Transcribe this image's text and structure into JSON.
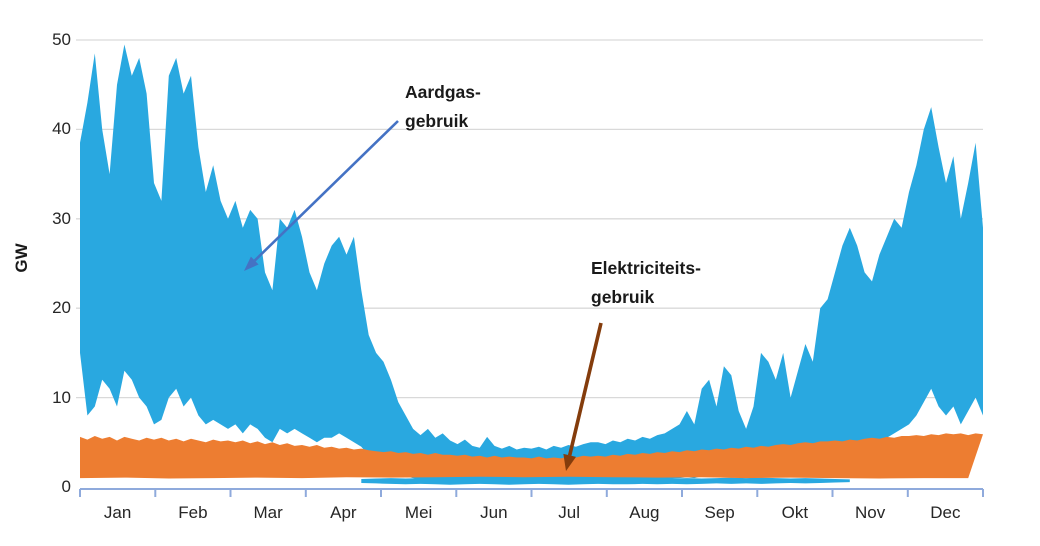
{
  "chart_data": {
    "type": "area",
    "title": "",
    "ylabel": "GW",
    "ylim": [
      0,
      50
    ],
    "yticks": [
      0,
      10,
      20,
      30,
      40,
      50
    ],
    "x_categories": [
      "Jan",
      "Feb",
      "Mar",
      "Apr",
      "Mei",
      "Jun",
      "Jul",
      "Aug",
      "Sep",
      "Okt",
      "Nov",
      "Dec"
    ],
    "grid": "horizontal",
    "legend": "none",
    "annotations": {
      "gas": {
        "line1": "Aardgas-",
        "line2": "gebruik"
      },
      "elec": {
        "line1": "Elektriciteits-",
        "line2": "gebruik"
      }
    },
    "colors": {
      "gas_fill": "#29A8E0",
      "elec_fill": "#ED7D31",
      "gridline": "#D9D9D9",
      "axis_line": "#8FAADC",
      "gas_arrow": "#4472C4",
      "elec_arrow": "#843C0C",
      "text": "#1a1a1a"
    },
    "series": [
      {
        "name": "Aardgasgebruik",
        "role": "gas-band",
        "unit": "GW",
        "start_day": 0,
        "step_days": 3,
        "max_values": [
          38.5,
          43,
          48.5,
          40,
          35,
          45,
          49.5,
          46,
          48,
          44,
          34,
          32,
          46,
          48,
          44,
          46,
          38,
          33,
          36,
          32,
          30,
          32,
          29,
          31,
          30,
          24,
          22,
          30,
          29,
          31,
          28,
          24,
          22,
          25,
          27,
          28,
          26,
          28,
          22,
          17,
          15,
          14,
          12,
          9.5,
          8,
          6.5,
          5.8,
          6.5,
          5.5,
          6,
          5.2,
          4.8,
          5.3,
          4.6,
          4.4,
          5.6,
          4.6,
          4.3,
          4.6,
          4.2,
          4.4,
          4.3,
          4.5,
          4.2,
          4.6,
          4.4,
          4.7,
          4.5,
          4.8,
          5,
          5,
          4.8,
          5.2,
          5,
          5.4,
          5.2,
          5.6,
          5.4,
          5.8,
          6,
          6.5,
          7,
          8.5,
          7,
          11,
          12,
          9,
          13.5,
          12.5,
          8.5,
          6.5,
          9,
          15,
          14,
          12,
          15,
          10,
          13,
          16,
          14,
          20,
          21,
          24,
          27,
          29,
          27,
          24,
          23,
          26,
          28,
          30,
          29,
          33,
          36,
          40,
          42.5,
          38,
          34,
          37,
          30,
          34,
          38.5,
          29
        ],
        "min_values": [
          15,
          8,
          9,
          12,
          11,
          9,
          13,
          12,
          10,
          9,
          7,
          7.5,
          10,
          11,
          9,
          10,
          8,
          7,
          7.5,
          7,
          6.5,
          7,
          6,
          7,
          6.5,
          5.5,
          5,
          6.5,
          6,
          6.5,
          6,
          5.5,
          5,
          5.5,
          5.5,
          6,
          5.5,
          5,
          4.5,
          3.5,
          3,
          2.5,
          2,
          1.5,
          1.2,
          1,
          0.8,
          0.9,
          0.7,
          0.8,
          0.65,
          0.6,
          0.65,
          0.55,
          0.5,
          0.6,
          0.5,
          0.45,
          0.5,
          0.45,
          0.5,
          0.45,
          0.5,
          0.45,
          0.5,
          0.5,
          0.55,
          0.5,
          0.6,
          0.6,
          0.65,
          0.6,
          0.7,
          0.65,
          0.75,
          0.7,
          0.8,
          0.75,
          0.85,
          0.9,
          0.95,
          1,
          1.1,
          1,
          1.2,
          1.3,
          1.1,
          1.4,
          1.3,
          1.1,
          1,
          1.2,
          1.6,
          1.5,
          1.4,
          1.7,
          1.5,
          1.8,
          2,
          2.2,
          2.8,
          3,
          3.5,
          4,
          4.5,
          4.2,
          4,
          4.5,
          5,
          5.5,
          6,
          6.5,
          7,
          8,
          9.5,
          11,
          9,
          8,
          9,
          7,
          8.5,
          10,
          8
        ],
        "night_min_band": {
          "start_day": 114,
          "step_days": 6,
          "top_values": [
            0.9,
            0.95,
            1,
            0.95,
            1,
            1,
            0.95,
            1,
            0.95,
            1,
            0.95,
            0.9,
            0.95,
            1,
            0.95,
            1,
            0.95,
            1,
            1,
            0.95,
            1,
            0.95,
            1,
            0.95,
            1,
            1.05,
            1,
            1.05,
            1,
            0.95,
            1,
            0.95,
            0.9,
            0.85
          ],
          "bottom_values": [
            0.45,
            0.4,
            0.35,
            0.3,
            0.35,
            0.3,
            0.25,
            0.3,
            0.35,
            0.3,
            0.25,
            0.3,
            0.35,
            0.3,
            0.25,
            0.3,
            0.35,
            0.3,
            0.3,
            0.35,
            0.3,
            0.35,
            0.3,
            0.35,
            0.4,
            0.35,
            0.4,
            0.35,
            0.4,
            0.45,
            0.4,
            0.45,
            0.5,
            0.55
          ]
        }
      },
      {
        "name": "Elektriciteitsgebruik",
        "role": "elec-band",
        "unit": "GW",
        "start_day": 0,
        "step_days": 3,
        "max_values": [
          5.6,
          5.3,
          5.7,
          5.4,
          5.6,
          5.2,
          5.6,
          5.4,
          5.2,
          5.5,
          5.3,
          5.5,
          5.2,
          5.4,
          5.1,
          5.4,
          5.2,
          5,
          5.3,
          5.1,
          5.2,
          5,
          5.2,
          4.9,
          5.1,
          4.8,
          5,
          4.7,
          4.9,
          4.6,
          4.7,
          4.5,
          4.7,
          4.4,
          4.5,
          4.3,
          4.4,
          4.2,
          4.3,
          4.1,
          4,
          3.9,
          4,
          3.8,
          3.9,
          3.7,
          3.8,
          3.6,
          3.8,
          3.6,
          3.6,
          3.5,
          3.6,
          3.4,
          3.5,
          3.3,
          3.5,
          3.3,
          3.4,
          3.3,
          3.3,
          3.2,
          3.4,
          3.2,
          3.3,
          3.2,
          3.4,
          3.3,
          3.5,
          3.4,
          3.5,
          3.4,
          3.6,
          3.5,
          3.7,
          3.6,
          3.8,
          3.7,
          3.9,
          3.8,
          4,
          3.9,
          4.1,
          4,
          4.2,
          4.1,
          4.3,
          4.2,
          4.4,
          4.3,
          4.5,
          4.4,
          4.6,
          4.5,
          4.7,
          4.8,
          4.7,
          4.9,
          5,
          4.9,
          5.1,
          5.1,
          5.2,
          5.1,
          5.3,
          5.2,
          5.4,
          5.5,
          5.4,
          5.6,
          5.5,
          5.7,
          5.7,
          5.8,
          5.7,
          5.9,
          5.8,
          6,
          5.9,
          6,
          5.8,
          6,
          5.9
        ],
        "min_values_start_day": 0,
        "min_values_step_days": 18,
        "min_values": [
          1,
          1.05,
          0.95,
          1,
          1.05,
          1,
          1.1,
          1.05,
          1.1,
          1.15,
          1.1,
          1.15,
          1.1,
          1.05,
          1.1,
          1,
          1.05,
          1,
          0.95,
          1,
          1
        ]
      }
    ]
  }
}
